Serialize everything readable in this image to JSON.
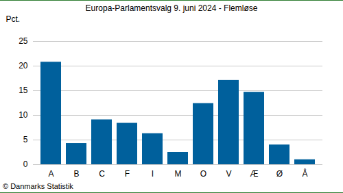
{
  "chart_data": {
    "type": "bar",
    "title": "Europa-Parlamentsvalg 9. juni 2024 - Flemløse",
    "y_label": "Pct.",
    "caption": "© Danmarks Statistik",
    "categories": [
      "A",
      "B",
      "C",
      "F",
      "I",
      "M",
      "O",
      "V",
      "Æ",
      "Ø",
      "Å"
    ],
    "values": [
      20.8,
      4.3,
      9.1,
      8.4,
      6.3,
      2.5,
      12.4,
      17.1,
      14.7,
      4.0,
      1.0
    ],
    "color": "#00609c",
    "ylim": [
      0,
      25
    ],
    "yticks": [
      0,
      5,
      10,
      15,
      20,
      25
    ],
    "grid": true
  }
}
